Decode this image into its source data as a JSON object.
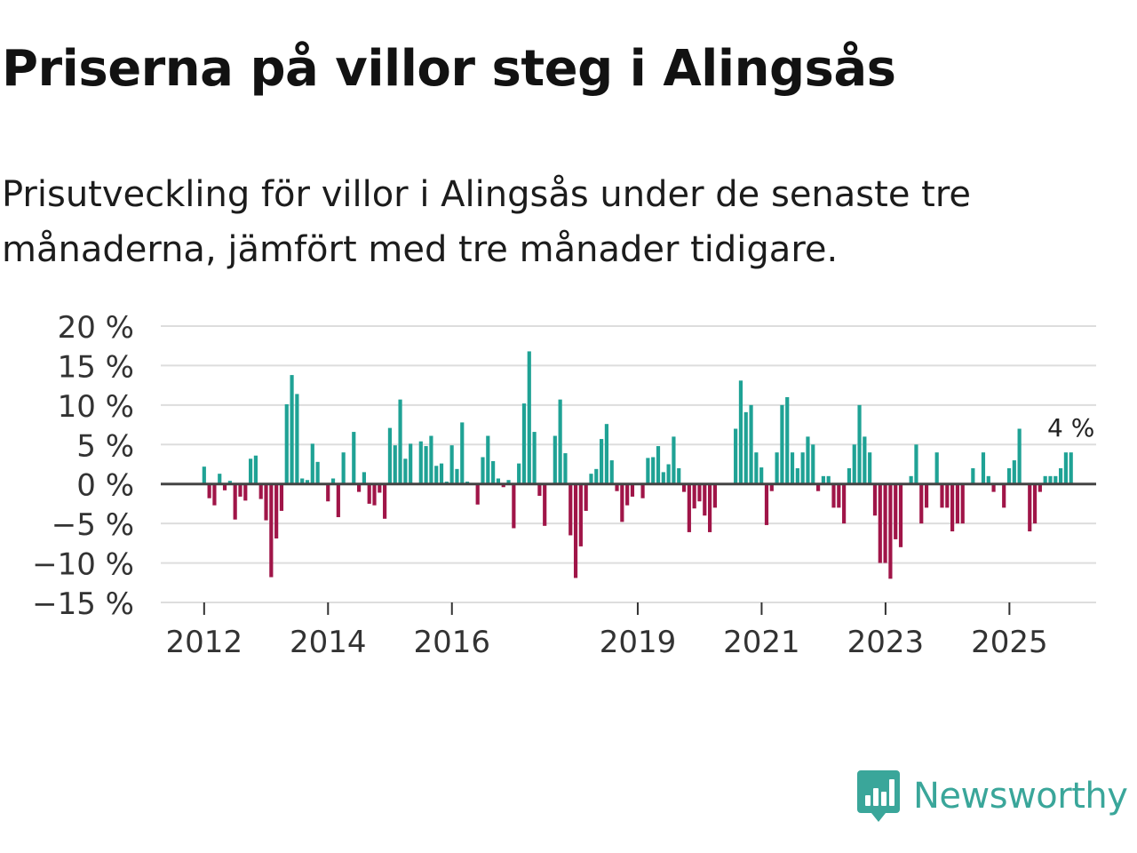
{
  "title": "Priserna på villor steg i Alingsås",
  "subtitle": "Prisutveckling för villor i Alingsås under de senaste tre månaderna, jämfört med tre månader tidigare.",
  "brand": {
    "name": "Newsworthy",
    "icon": "newsworthy-logo-icon",
    "color": "#3aa69a"
  },
  "colors": {
    "positive": "#1fa295",
    "negative": "#a01548",
    "grid": "#dddddd",
    "zero": "#444444"
  },
  "chart_data": {
    "type": "bar",
    "title": "Priserna på villor steg i Alingsås",
    "xlabel": "",
    "ylabel": "",
    "ylim": [
      -15,
      20
    ],
    "yticks": [
      20,
      15,
      10,
      5,
      0,
      -5,
      -10,
      -15
    ],
    "ytick_labels": [
      "20 %",
      "15 %",
      "10 %",
      "5 %",
      "0 %",
      "−5 %",
      "−10 %",
      "−15 %"
    ],
    "xlim": [
      2011.3,
      2026.4
    ],
    "xticks": [
      2012,
      2014,
      2016,
      2019,
      2021,
      2023,
      2025
    ],
    "xtick_labels": [
      "2012",
      "2014",
      "2016",
      "2019",
      "2021",
      "2023",
      "2025"
    ],
    "start": 2012,
    "step": 0.0833,
    "end_label": "4 %",
    "values": [
      2.2,
      -1.8,
      -2.7,
      1.3,
      -0.8,
      0.4,
      -4.5,
      -1.6,
      -2.1,
      3.2,
      3.6,
      -1.9,
      -4.6,
      -11.8,
      -6.9,
      -3.4,
      10.1,
      13.8,
      11.4,
      0.7,
      0.5,
      5.1,
      2.8,
      0,
      -2.2,
      0.7,
      -4.2,
      4.0,
      0,
      6.6,
      -1.0,
      1.5,
      -2.5,
      -2.7,
      -1.1,
      -4.4,
      7.1,
      4.9,
      10.7,
      3.2,
      5.1,
      0,
      5.4,
      4.8,
      6.1,
      2.3,
      2.6,
      0.3,
      4.9,
      1.9,
      7.8,
      0.3,
      0,
      -2.6,
      3.4,
      6.1,
      2.9,
      0.7,
      -0.4,
      0.5,
      -5.6,
      2.6,
      10.2,
      16.8,
      6.6,
      -1.5,
      -5.3,
      0,
      6.1,
      10.7,
      3.9,
      -6.5,
      -11.9,
      -7.9,
      -3.4,
      1.3,
      1.9,
      5.7,
      7.6,
      3.0,
      -0.9,
      -4.8,
      -2.7,
      -1.6,
      0,
      -1.8,
      3.3,
      3.4,
      4.8,
      1.5,
      2.5,
      6.0,
      2.0,
      -1.0,
      -6.1,
      -3.1,
      -2.2,
      -4.0,
      -6.1,
      -3.0,
      0,
      0,
      0,
      7.0,
      13.1,
      9.1,
      10.0,
      4.0,
      2.1,
      -5.2,
      -0.9,
      4.0,
      10.0,
      11.0,
      4.0,
      2.0,
      4.0,
      6.0,
      5.0,
      -0.9,
      1.0,
      1.0,
      -3.0,
      -3.0,
      -5.0,
      2.0,
      5.0,
      10.0,
      6.0,
      4.0,
      -4.0,
      -10.0,
      -10.0,
      -12.0,
      -7.0,
      -8.0,
      0,
      1.0,
      5.0,
      -5.0,
      -3.0,
      0,
      4.0,
      -3.0,
      -3.0,
      -6.0,
      -5.0,
      -5.0,
      0,
      2.0,
      0,
      4.0,
      1.0,
      -1.0,
      0,
      -3.0,
      2.0,
      3.0,
      7.0,
      0,
      -6.0,
      -5.0,
      -1.0,
      1.0,
      1.0,
      1.0,
      2.0,
      4.0,
      4.0
    ]
  }
}
